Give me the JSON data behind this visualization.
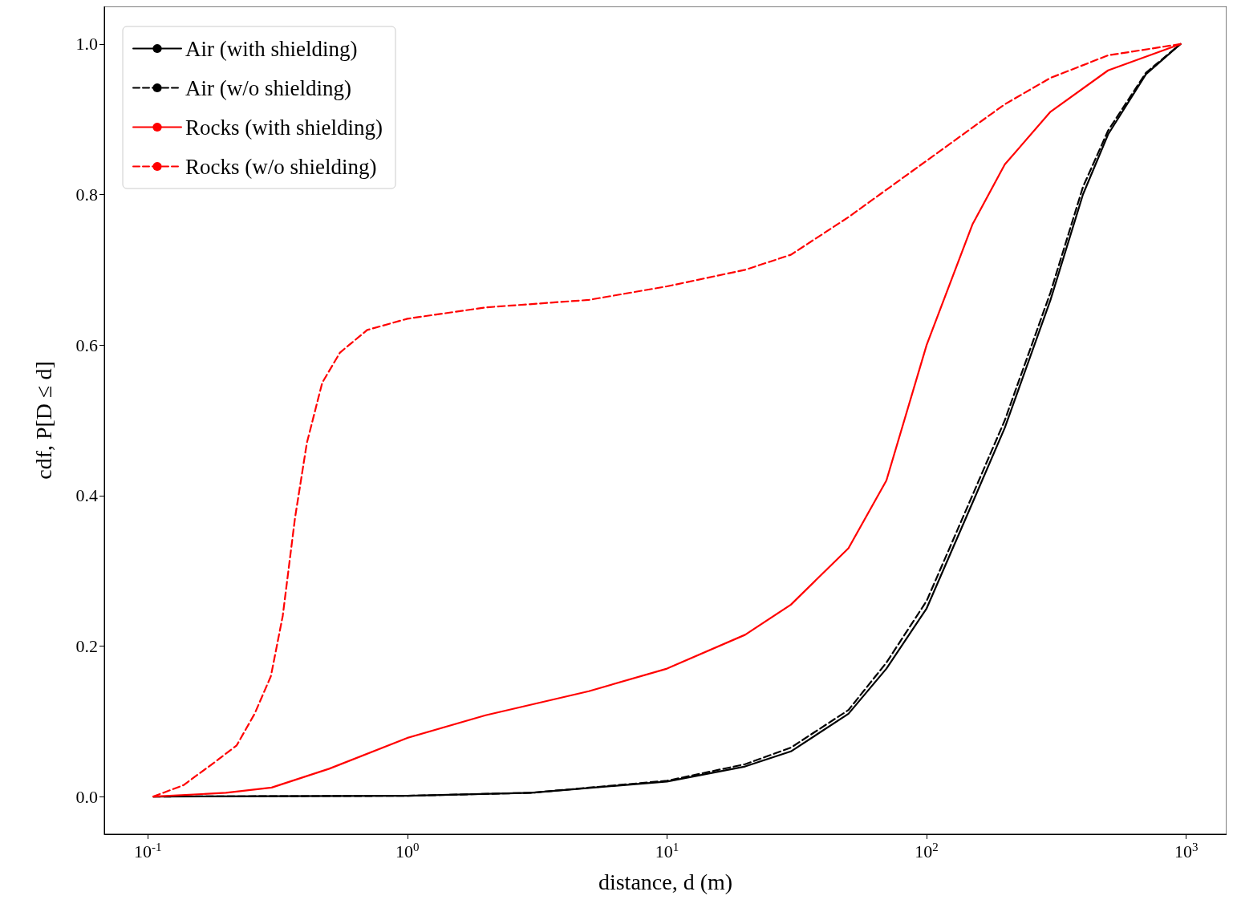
{
  "chart_data": {
    "type": "line",
    "xlabel": "distance, d (m)",
    "ylabel": "cdf, P[D ≤ d]",
    "log": "x",
    "xlim": [
      0.068,
      1430
    ],
    "ylim": [
      -0.05,
      1.05
    ],
    "xticks": [
      {
        "value": 0.1,
        "label": "10$^{-1}$"
      },
      {
        "value": 1,
        "label": "10$^{0}$"
      },
      {
        "value": 10,
        "label": "10$^{1}$"
      },
      {
        "value": 100,
        "label": "10$^{2}$"
      },
      {
        "value": 1000,
        "label": "10$^{3}$"
      }
    ],
    "yticks": [
      {
        "value": 0,
        "label": "0.0"
      },
      {
        "value": 0.2,
        "label": "0.2"
      },
      {
        "value": 0.4,
        "label": "0.4"
      },
      {
        "value": 0.6,
        "label": "0.6"
      },
      {
        "value": 0.8,
        "label": "0.8"
      },
      {
        "value": 1,
        "label": "1.0"
      }
    ],
    "grid": false,
    "legend": "top left",
    "marker": "none",
    "series": [
      {
        "name": "Air (with shielding)",
        "color": "#000000",
        "line_style": "solid",
        "x": [
          0.105,
          1,
          3,
          10,
          20,
          30,
          50,
          70,
          100,
          150,
          200,
          300,
          400,
          500,
          700,
          950
        ],
        "values": [
          0,
          0.001,
          0.005,
          0.02,
          0.04,
          0.06,
          0.11,
          0.17,
          0.25,
          0.39,
          0.49,
          0.66,
          0.8,
          0.88,
          0.96,
          1
        ]
      },
      {
        "name": "Air (w/o shielding)",
        "color": "#000000",
        "line_style": "dashed",
        "x": [
          0.105,
          1,
          3,
          10,
          20,
          30,
          50,
          70,
          100,
          150,
          200,
          300,
          400,
          500,
          700,
          950
        ],
        "values": [
          0,
          0.001,
          0.005,
          0.021,
          0.043,
          0.065,
          0.115,
          0.178,
          0.26,
          0.4,
          0.5,
          0.67,
          0.81,
          0.885,
          0.962,
          1
        ]
      },
      {
        "name": "Rocks (with shielding)",
        "color": "#ff0000",
        "line_style": "solid",
        "x": [
          0.105,
          0.2,
          0.3,
          0.5,
          1,
          2,
          5,
          10,
          20,
          30,
          50,
          70,
          100,
          150,
          200,
          300,
          500,
          950
        ],
        "values": [
          0,
          0.005,
          0.012,
          0.037,
          0.078,
          0.108,
          0.14,
          0.17,
          0.215,
          0.255,
          0.33,
          0.42,
          0.6,
          0.76,
          0.84,
          0.91,
          0.965,
          1
        ]
      },
      {
        "name": "Rocks (w/o shielding)",
        "color": "#ff0000",
        "line_style": "dashed",
        "x": [
          0.105,
          0.137,
          0.18,
          0.22,
          0.258,
          0.298,
          0.331,
          0.369,
          0.41,
          0.47,
          0.55,
          0.7,
          1,
          2,
          5,
          10,
          20,
          30,
          50,
          100,
          200,
          300,
          500,
          950
        ],
        "values": [
          0,
          0.015,
          0.045,
          0.068,
          0.11,
          0.16,
          0.24,
          0.37,
          0.47,
          0.55,
          0.59,
          0.62,
          0.635,
          0.65,
          0.66,
          0.678,
          0.7,
          0.72,
          0.77,
          0.845,
          0.92,
          0.955,
          0.985,
          1
        ]
      }
    ]
  }
}
